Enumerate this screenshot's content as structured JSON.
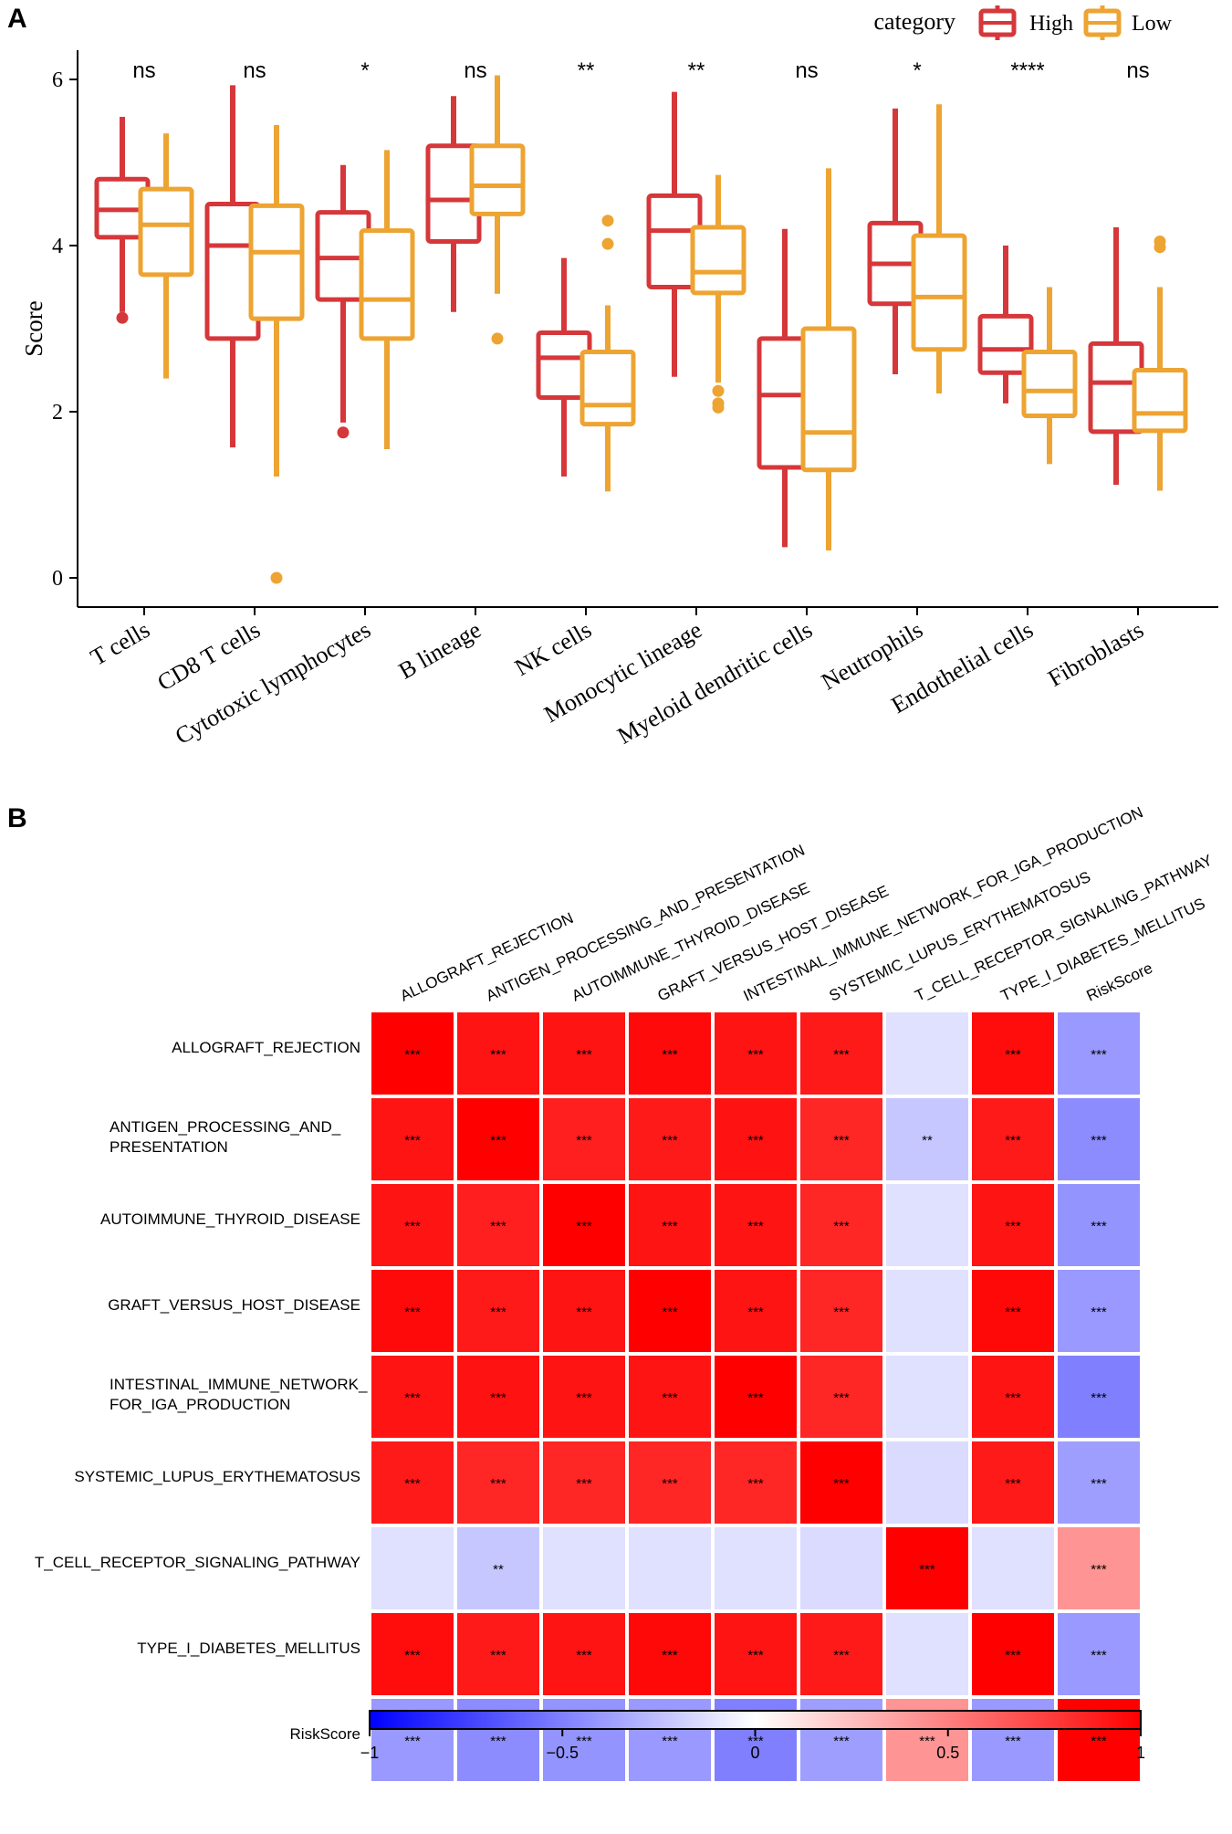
{
  "panels": {
    "a_label": "A",
    "b_label": "B"
  },
  "colors": {
    "high": "#d6373a",
    "low": "#eda432",
    "neg": "#0000ff",
    "mid": "#ffffff",
    "pos": "#ff0000",
    "grid": "#ffffff"
  },
  "chart_data": [
    {
      "type": "boxplot",
      "ylabel": "Score",
      "ylim": [
        0,
        6.3
      ],
      "yticks": [
        0,
        2,
        4,
        6
      ],
      "legend": {
        "title": "category",
        "entries": [
          "High",
          "Low"
        ],
        "placement": "top-right"
      },
      "categories": [
        "T cells",
        "CD8 T cells",
        "Cytotoxic lymphocytes",
        "B lineage",
        "NK cells",
        "Monocytic lineage",
        "Myeloid dendritic cells",
        "Neutrophils",
        "Endothelial cells",
        "Fibroblasts"
      ],
      "significance": [
        "ns",
        "ns",
        "*",
        "ns",
        "**",
        "**",
        "ns",
        "*",
        "****",
        "ns"
      ],
      "series": [
        {
          "name": "High",
          "boxes": [
            {
              "min": 3.2,
              "q1": 4.1,
              "median": 4.43,
              "q3": 4.8,
              "max": 5.55,
              "outliers": [
                3.13
              ]
            },
            {
              "min": 1.57,
              "q1": 2.88,
              "median": 4.0,
              "q3": 4.5,
              "max": 5.93,
              "outliers": []
            },
            {
              "min": 1.87,
              "q1": 3.35,
              "median": 3.85,
              "q3": 4.4,
              "max": 4.97,
              "outliers": [
                1.75
              ]
            },
            {
              "min": 3.2,
              "q1": 4.05,
              "median": 4.55,
              "q3": 5.2,
              "max": 5.8,
              "outliers": []
            },
            {
              "min": 1.22,
              "q1": 2.17,
              "median": 2.65,
              "q3": 2.95,
              "max": 3.85,
              "outliers": []
            },
            {
              "min": 2.42,
              "q1": 3.5,
              "median": 4.18,
              "q3": 4.6,
              "max": 5.85,
              "outliers": []
            },
            {
              "min": 0.37,
              "q1": 1.33,
              "median": 2.2,
              "q3": 2.88,
              "max": 4.2,
              "outliers": []
            },
            {
              "min": 2.45,
              "q1": 3.3,
              "median": 3.78,
              "q3": 4.27,
              "max": 5.65,
              "outliers": []
            },
            {
              "min": 2.1,
              "q1": 2.47,
              "median": 2.75,
              "q3": 3.15,
              "max": 4.0,
              "outliers": []
            },
            {
              "min": 1.12,
              "q1": 1.76,
              "median": 2.35,
              "q3": 2.82,
              "max": 4.22,
              "outliers": []
            }
          ]
        },
        {
          "name": "Low",
          "boxes": [
            {
              "min": 2.4,
              "q1": 3.65,
              "median": 4.25,
              "q3": 4.68,
              "max": 5.35,
              "outliers": []
            },
            {
              "min": 1.22,
              "q1": 3.12,
              "median": 3.92,
              "q3": 4.48,
              "max": 5.45,
              "outliers": [
                0.0
              ]
            },
            {
              "min": 1.55,
              "q1": 2.88,
              "median": 3.35,
              "q3": 4.18,
              "max": 5.15,
              "outliers": []
            },
            {
              "min": 3.42,
              "q1": 4.38,
              "median": 4.72,
              "q3": 5.2,
              "max": 6.05,
              "outliers": [
                2.88
              ]
            },
            {
              "min": 1.04,
              "q1": 1.85,
              "median": 2.08,
              "q3": 2.72,
              "max": 3.28,
              "outliers": [
                4.3,
                4.02
              ]
            },
            {
              "min": 2.35,
              "q1": 3.43,
              "median": 3.68,
              "q3": 4.22,
              "max": 4.85,
              "outliers": [
                2.25,
                2.1,
                2.05
              ]
            },
            {
              "min": 0.33,
              "q1": 1.3,
              "median": 1.75,
              "q3": 3.0,
              "max": 4.93,
              "outliers": []
            },
            {
              "min": 2.22,
              "q1": 2.75,
              "median": 3.38,
              "q3": 4.12,
              "max": 5.7,
              "outliers": []
            },
            {
              "min": 1.37,
              "q1": 1.95,
              "median": 2.25,
              "q3": 2.72,
              "max": 3.5,
              "outliers": []
            },
            {
              "min": 1.05,
              "q1": 1.77,
              "median": 1.98,
              "q3": 2.5,
              "max": 3.5,
              "outliers": [
                4.05,
                3.98
              ]
            }
          ]
        }
      ]
    },
    {
      "type": "heatmap",
      "rows": [
        "ALLOGRAFT_REJECTION",
        "ANTIGEN_PROCESSING_AND_PRESENTATION",
        "AUTOIMMUNE_THYROID_DISEASE",
        "GRAFT_VERSUS_HOST_DISEASE",
        "INTESTINAL_IMMUNE_NETWORK_FOR_IGA_PRODUCTION",
        "SYSTEMIC_LUPUS_ERYTHEMATOSUS",
        "T_CELL_RECEPTOR_SIGNALING_PATHWAY",
        "TYPE_I_DIABETES_MELLITUS",
        "RiskScore"
      ],
      "row_labels": [
        [
          "ALLOGRAFT_REJECTION"
        ],
        [
          "ANTIGEN_PROCESSING_AND_",
          "PRESENTATION"
        ],
        [
          "AUTOIMMUNE_THYROID_DISEASE"
        ],
        [
          "GRAFT_VERSUS_HOST_DISEASE"
        ],
        [
          "INTESTINAL_IMMUNE_NETWORK_",
          "FOR_IGA_PRODUCTION"
        ],
        [
          "SYSTEMIC_LUPUS_ERYTHEMATOSUS"
        ],
        [
          "T_CELL_RECEPTOR_SIGNALING_PATHWAY"
        ],
        [
          "TYPE_I_DIABETES_MELLITUS"
        ],
        [
          "RiskScore"
        ]
      ],
      "columns": [
        "ALLOGRAFT_REJECTION",
        "ANTIGEN_PROCESSING_AND_PRESENTATION",
        "AUTOIMMUNE_THYROID_DISEASE",
        "GRAFT_VERSUS_HOST_DISEASE",
        "INTESTINAL_IMMUNE_NETWORK_FOR_IGA_PRODUCTION",
        "SYSTEMIC_LUPUS_ERYTHEMATOSUS",
        "T_CELL_RECEPTOR_SIGNALING_PATHWAY",
        "TYPE_I_DIABETES_MELLITUS",
        "RiskScore"
      ],
      "values": [
        [
          1.0,
          0.92,
          0.92,
          0.96,
          0.92,
          0.9,
          -0.12,
          0.95,
          -0.4
        ],
        [
          0.92,
          1.0,
          0.88,
          0.9,
          0.93,
          0.85,
          -0.22,
          0.9,
          -0.45
        ],
        [
          0.92,
          0.88,
          1.0,
          0.92,
          0.92,
          0.85,
          -0.12,
          0.92,
          -0.42
        ],
        [
          0.96,
          0.9,
          0.92,
          1.0,
          0.92,
          0.85,
          -0.12,
          0.97,
          -0.4
        ],
        [
          0.92,
          0.93,
          0.92,
          0.92,
          1.0,
          0.85,
          -0.12,
          0.92,
          -0.5
        ],
        [
          0.9,
          0.85,
          0.85,
          0.85,
          0.85,
          1.0,
          -0.14,
          0.9,
          -0.38
        ],
        [
          -0.12,
          -0.22,
          -0.12,
          -0.12,
          -0.12,
          -0.14,
          1.0,
          -0.12,
          0.42
        ],
        [
          0.95,
          0.9,
          0.92,
          0.97,
          0.92,
          0.9,
          -0.12,
          1.0,
          -0.4
        ],
        [
          -0.4,
          -0.45,
          -0.42,
          -0.4,
          -0.5,
          -0.38,
          0.42,
          -0.4,
          1.0
        ]
      ],
      "labels": [
        [
          "***",
          "***",
          "***",
          "***",
          "***",
          "***",
          "",
          "***",
          "***"
        ],
        [
          "***",
          "***",
          "***",
          "***",
          "***",
          "***",
          "**",
          "***",
          "***"
        ],
        [
          "***",
          "***",
          "***",
          "***",
          "***",
          "***",
          "",
          "***",
          "***"
        ],
        [
          "***",
          "***",
          "***",
          "***",
          "***",
          "***",
          "",
          "***",
          "***"
        ],
        [
          "***",
          "***",
          "***",
          "***",
          "***",
          "***",
          "",
          "***",
          "***"
        ],
        [
          "***",
          "***",
          "***",
          "***",
          "***",
          "***",
          "",
          "***",
          "***"
        ],
        [
          "",
          "**",
          "",
          "",
          "",
          "",
          "***",
          "",
          "***"
        ],
        [
          "***",
          "***",
          "***",
          "***",
          "***",
          "***",
          "",
          "***",
          "***"
        ],
        [
          "***",
          "***",
          "***",
          "***",
          "***",
          "***",
          "***",
          "***",
          "***"
        ]
      ],
      "colorbar": {
        "range": [
          -1,
          1
        ],
        "ticks": [
          -1,
          -0.5,
          0,
          0.5,
          1
        ],
        "tick_labels": [
          "−1",
          "−0.5",
          "0",
          "0.5",
          "1"
        ]
      }
    }
  ]
}
